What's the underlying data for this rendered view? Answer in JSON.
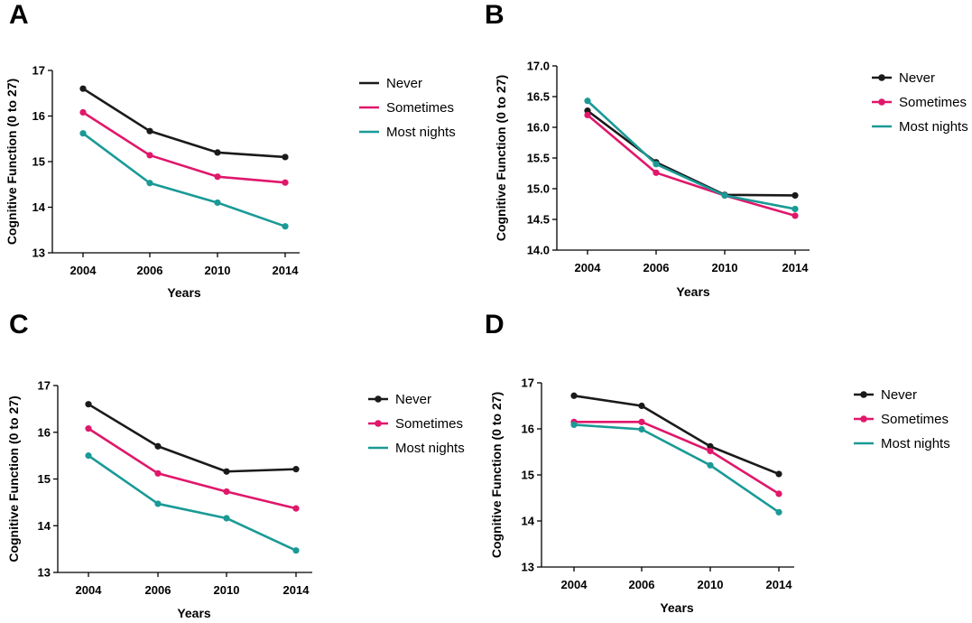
{
  "colors": {
    "never": "#1a1a1a",
    "sometimes": "#e0176b",
    "most_nights": "#1a9a96"
  },
  "chart_data": [
    {
      "panel": "A",
      "type": "line",
      "xlabel": "Years",
      "ylabel": "Cognitive Function (0 to 27)",
      "categories": [
        "2004",
        "2006",
        "2010",
        "2014"
      ],
      "ylim": [
        13,
        17
      ],
      "yticks": [
        "13",
        "14",
        "15",
        "16",
        "17"
      ],
      "legend_position": "right",
      "series": [
        {
          "name": "Never",
          "values": [
            16.6,
            15.67,
            15.2,
            15.1
          ]
        },
        {
          "name": "Sometimes",
          "values": [
            16.08,
            15.14,
            14.67,
            14.54
          ]
        },
        {
          "name": "Most nights",
          "values": [
            15.62,
            14.53,
            14.1,
            13.58
          ]
        }
      ]
    },
    {
      "panel": "B",
      "type": "line",
      "xlabel": "Years",
      "ylabel": "Cognitive Function (0 to 27)",
      "categories": [
        "2004",
        "2006",
        "2010",
        "2014"
      ],
      "ylim": [
        14.0,
        17.0
      ],
      "yticks": [
        "14.0",
        "14.5",
        "15.0",
        "15.5",
        "16.0",
        "16.5",
        "17.0"
      ],
      "legend_position": "right",
      "series": [
        {
          "name": "Never",
          "values": [
            16.27,
            15.43,
            14.9,
            14.89
          ]
        },
        {
          "name": "Sometimes",
          "values": [
            16.2,
            15.26,
            14.89,
            14.56
          ]
        },
        {
          "name": "Most nights",
          "values": [
            16.43,
            15.4,
            14.89,
            14.67
          ]
        }
      ]
    },
    {
      "panel": "C",
      "type": "line",
      "xlabel": "Years",
      "ylabel": "Cognitive Function (0 to 27)",
      "categories": [
        "2004",
        "2006",
        "2010",
        "2014"
      ],
      "ylim": [
        13,
        17
      ],
      "yticks": [
        "13",
        "14",
        "15",
        "16",
        "17"
      ],
      "legend_position": "right",
      "series": [
        {
          "name": "Never",
          "values": [
            16.6,
            15.7,
            15.16,
            15.21
          ]
        },
        {
          "name": "Sometimes",
          "values": [
            16.08,
            15.12,
            14.73,
            14.37
          ]
        },
        {
          "name": "Most nights",
          "values": [
            15.5,
            14.47,
            14.16,
            13.47
          ]
        }
      ]
    },
    {
      "panel": "D",
      "type": "line",
      "xlabel": "Years",
      "ylabel": "Cognitive Function (0 to 27)",
      "categories": [
        "2004",
        "2006",
        "2010",
        "2014"
      ],
      "ylim": [
        13,
        17
      ],
      "yticks": [
        "13",
        "14",
        "15",
        "16",
        "17"
      ],
      "legend_position": "right",
      "series": [
        {
          "name": "Never",
          "values": [
            16.72,
            16.5,
            15.62,
            15.02
          ]
        },
        {
          "name": "Sometimes",
          "values": [
            16.15,
            16.15,
            15.52,
            14.59
          ]
        },
        {
          "name": "Most nights",
          "values": [
            16.09,
            15.99,
            15.21,
            14.19
          ]
        }
      ]
    }
  ]
}
